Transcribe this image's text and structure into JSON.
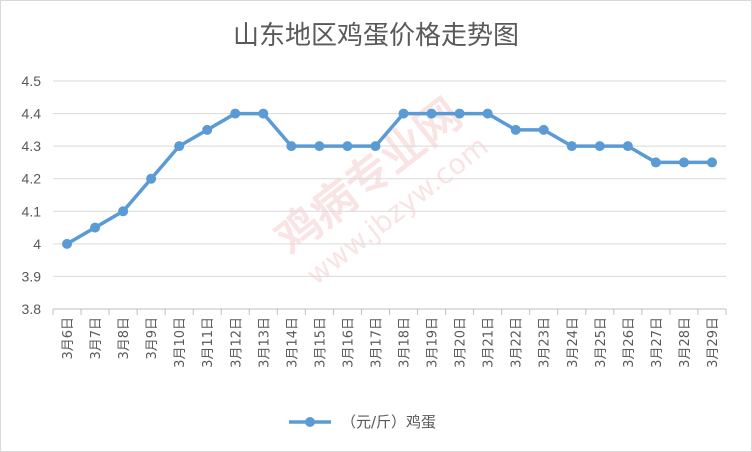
{
  "chart_data": {
    "type": "line",
    "title": "山东地区鸡蛋价格走势图",
    "xlabel": "",
    "ylabel": "",
    "categories": [
      "3月6日",
      "3月7日",
      "3月8日",
      "3月9日",
      "3月10日",
      "3月11日",
      "3月12日",
      "3月13日",
      "3月14日",
      "3月15日",
      "3月16日",
      "3月17日",
      "3月18日",
      "3月19日",
      "3月20日",
      "3月21日",
      "3月22日",
      "3月23日",
      "3月24日",
      "3月25日",
      "3月26日",
      "3月27日",
      "3月28日",
      "3月29日"
    ],
    "series": [
      {
        "name": "（元/斤）鸡蛋",
        "values": [
          4.0,
          4.05,
          4.1,
          4.2,
          4.3,
          4.35,
          4.4,
          4.4,
          4.3,
          4.3,
          4.3,
          4.3,
          4.4,
          4.4,
          4.4,
          4.4,
          4.35,
          4.35,
          4.3,
          4.3,
          4.3,
          4.25,
          4.25,
          4.25
        ],
        "color": "#5b9bd5"
      }
    ],
    "ylim": [
      3.8,
      4.5
    ],
    "yticks": [
      "3.8",
      "3.9",
      "4",
      "4.1",
      "4.2",
      "4.3",
      "4.4",
      "4.5"
    ],
    "grid": "horizontal",
    "legend_position": "bottom",
    "watermark": "鸡病专业网 www.jbzyw.com 行业天乙"
  }
}
